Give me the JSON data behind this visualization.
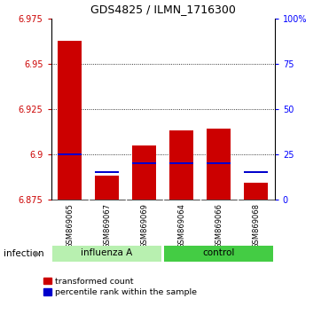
{
  "title": "GDS4825 / ILMN_1716300",
  "samples": [
    "GSM869065",
    "GSM869067",
    "GSM869069",
    "GSM869064",
    "GSM869066",
    "GSM869068"
  ],
  "transformed_count": [
    6.963,
    6.888,
    6.905,
    6.913,
    6.914,
    6.884
  ],
  "percentile_rank": [
    25,
    15,
    20,
    20,
    20,
    15
  ],
  "bar_color": "#CC0000",
  "blue_color": "#0000CC",
  "ymin": 6.875,
  "ymax": 6.975,
  "yticks": [
    6.875,
    6.9,
    6.925,
    6.95,
    6.975
  ],
  "y2min": 0,
  "y2max": 100,
  "y2ticks": [
    0,
    25,
    50,
    75,
    100
  ],
  "infection_label": "infection",
  "influenza_color": "#b8f0b0",
  "control_color": "#44cc44",
  "sample_box_color": "#d0d0d0",
  "legend_items": [
    "transformed count",
    "percentile rank within the sample"
  ],
  "bar_width": 0.65,
  "bgcolor": "#ffffff"
}
